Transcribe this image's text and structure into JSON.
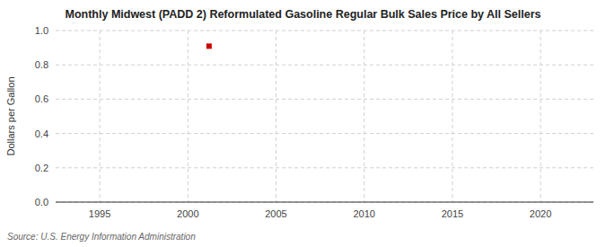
{
  "chart_data": {
    "type": "scatter",
    "title": "Monthly Midwest (PADD 2) Reformulated Gasoline Regular Bulk Sales Price by All Sellers",
    "y_label": "Dollars per Gallon",
    "source": "Source: U.S. Energy Information Administration",
    "x": [
      2001.2
    ],
    "values": [
      0.909
    ],
    "color": "#cc0000",
    "marker": "square",
    "xlim": [
      1992.5,
      2023
    ],
    "ylim": [
      0.0,
      1.0
    ],
    "xticks": [
      1995,
      2000,
      2005,
      2010,
      2015,
      2020
    ],
    "yticks": [
      {
        "value": 0.0,
        "label": "0.0"
      },
      0.2,
      0.4,
      0.6,
      0.8,
      {
        "value": 1.0,
        "label": "1.0"
      }
    ],
    "grid": true
  }
}
